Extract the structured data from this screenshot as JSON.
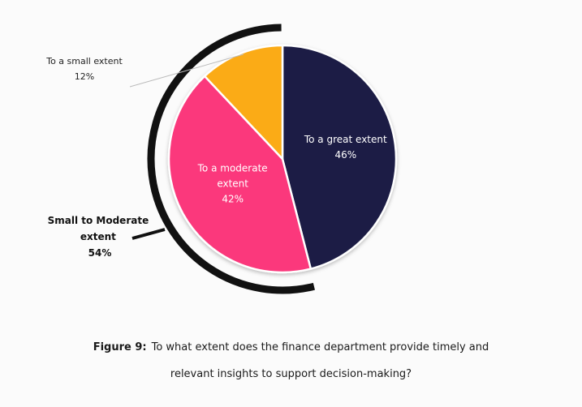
{
  "chart_data": {
    "type": "pie",
    "categories": [
      "To a great extent",
      "To a moderate extent",
      "To a small extent"
    ],
    "values": [
      46,
      42,
      12
    ],
    "value_labels": [
      "46%",
      "42%",
      "12%"
    ],
    "colors": [
      "#1b1d44",
      "#fb377b",
      "#fbab18"
    ],
    "label_colors": [
      "#ffffff",
      "#ffffff",
      "#222222"
    ],
    "group_annotation": {
      "lines": [
        "Small to Moderate",
        "extent",
        "54%"
      ],
      "covers": [
        "To a moderate extent",
        "To a small extent"
      ]
    }
  },
  "caption": {
    "figure_label": "Figure 9:",
    "line1": "To what extent does the finance department provide timely and",
    "line2": "relevant insights to support decision-making?"
  }
}
